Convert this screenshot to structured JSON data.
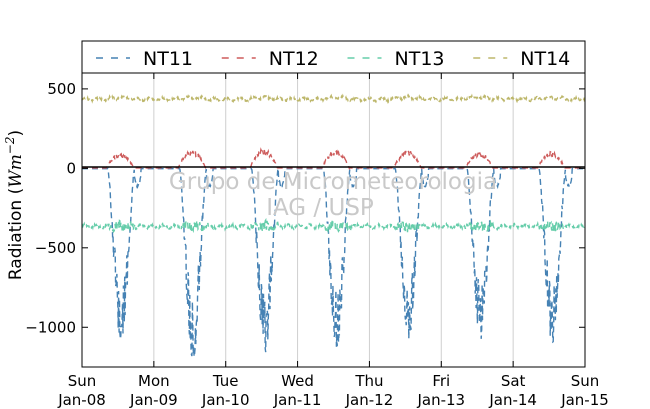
{
  "chart_data": {
    "type": "line",
    "title": "",
    "ylabel": "Radiation (Wm⁻²)",
    "ylabel_prefix": "Radiation (",
    "ylabel_unit_base": "Wm",
    "ylabel_unit_exp": "−2",
    "ylabel_suffix": ")",
    "xlabel": "",
    "ylim": [
      -1250,
      600
    ],
    "yticks": [
      {
        "value": 500,
        "label": "500"
      },
      {
        "value": 0,
        "label": "0"
      },
      {
        "value": -500,
        "label": "−500"
      },
      {
        "value": -1000,
        "label": "−1000"
      }
    ],
    "xlim": [
      0,
      7
    ],
    "xticks": [
      {
        "value": 0,
        "day": "Sun",
        "date": "Jan-08"
      },
      {
        "value": 1,
        "day": "Mon",
        "date": "Jan-09"
      },
      {
        "value": 2,
        "day": "Tue",
        "date": "Jan-10"
      },
      {
        "value": 3,
        "day": "Wed",
        "date": "Jan-11"
      },
      {
        "value": 4,
        "day": "Thu",
        "date": "Jan-12"
      },
      {
        "value": 5,
        "day": "Fri",
        "date": "Jan-13"
      },
      {
        "value": 6,
        "day": "Sat",
        "date": "Jan-14"
      },
      {
        "value": 7,
        "day": "Sun",
        "date": "Jan-15"
      }
    ],
    "grid": "vertical",
    "legend_position": "top",
    "watermark": [
      "Grupo de Micrometeorologia",
      "IAG / USP"
    ],
    "series": [
      {
        "name": "NT11",
        "color": "#4682b4",
        "style": "dashed",
        "daily_minimum": [
          -1100,
          -1200,
          -1180,
          -1130,
          -1080,
          -1080,
          -1100
        ]
      },
      {
        "name": "NT12",
        "color": "#cd5c5c",
        "style": "dashed",
        "daily_maximum": [
          95,
          115,
          125,
          115,
          115,
          105,
          105
        ]
      },
      {
        "name": "NT13",
        "color": "#66cdaa",
        "style": "dashed",
        "mean": -365
      },
      {
        "name": "NT14",
        "color": "#bdb76b",
        "style": "dashed",
        "mean": 435
      }
    ]
  }
}
